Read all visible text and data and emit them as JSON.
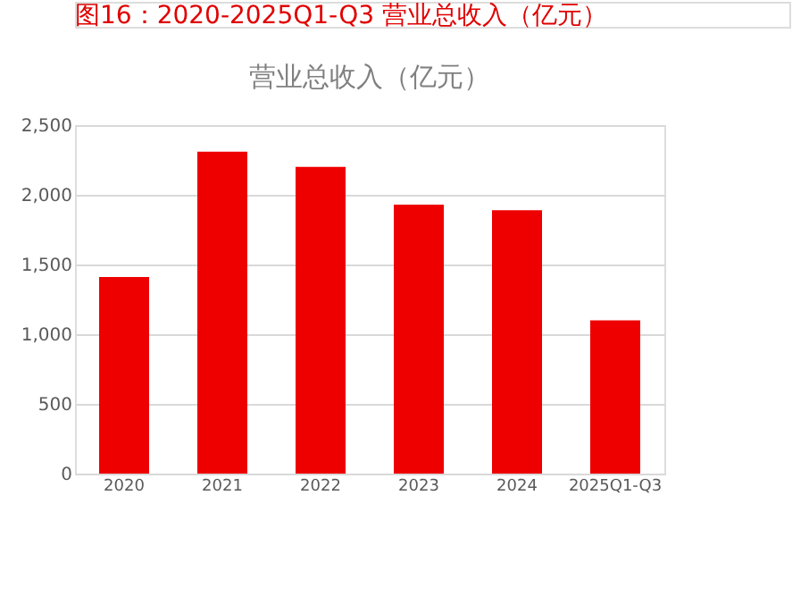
{
  "chart_data": {
    "type": "bar",
    "title": "营业总收入（亿元）",
    "annotations": [
      "图16：2020-2025Q1-Q3 营业总收入（亿元）"
    ],
    "categories": [
      "2020",
      "2021",
      "2022",
      "2023",
      "2024",
      "2025Q1-Q3"
    ],
    "series": [
      {
        "color": "#ee0000",
        "values": [
          1410,
          2310,
          2200,
          1930,
          1890,
          1100
        ]
      }
    ],
    "ylim": [
      0,
      2500
    ],
    "yticks": [
      0,
      500,
      {
        "value": 1000,
        "label": "1,000"
      },
      {
        "value": 1500,
        "label": "1,500"
      },
      {
        "value": 2000,
        "label": "2,000"
      },
      {
        "value": 2500,
        "label": "2,500"
      }
    ],
    "grid": "y",
    "legend": false
  }
}
